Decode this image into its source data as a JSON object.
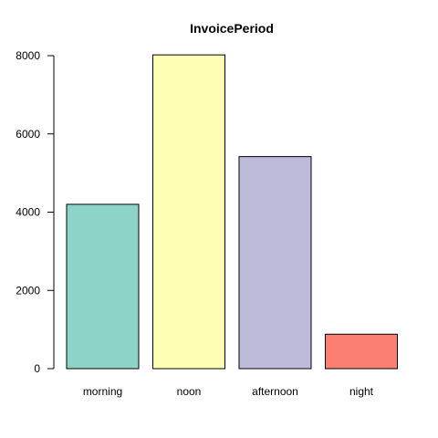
{
  "chart_data": {
    "type": "bar",
    "title": "InvoicePeriod",
    "xlabel": "",
    "ylabel": "",
    "categories": [
      "morning",
      "noon",
      "afternoon",
      "night"
    ],
    "values": [
      4200,
      8020,
      5420,
      880
    ],
    "colors": [
      "#8DD3C7",
      "#FFFFB3",
      "#BEBADA",
      "#FB8072"
    ],
    "ylim": [
      0,
      8000
    ],
    "yticks": [
      0,
      2000,
      4000,
      6000,
      8000
    ],
    "grid": false,
    "legend": "none"
  }
}
